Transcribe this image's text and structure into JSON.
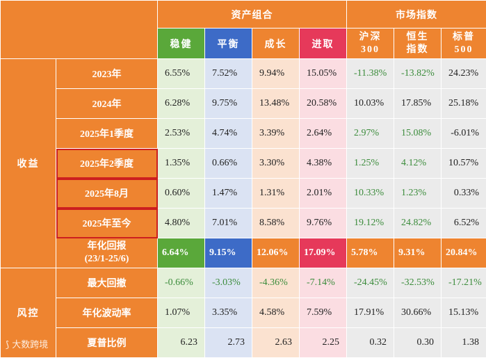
{
  "header": {
    "portfolio_group": "资产组合",
    "market_group": "市场指数",
    "columns": [
      "稳健",
      "平衡",
      "成长",
      "进取"
    ],
    "indices": [
      [
        "沪深",
        "300"
      ],
      [
        "恒生",
        "指数"
      ],
      [
        "标普",
        "500"
      ]
    ]
  },
  "sections": {
    "returns": "收益",
    "risk": "风控"
  },
  "rows": [
    {
      "label": "2023年",
      "values": [
        "6.55%",
        "7.52%",
        "9.94%",
        "15.05%",
        "-11.38%",
        "-13.82%",
        "24.23%"
      ]
    },
    {
      "label": "2024年",
      "values": [
        "6.28%",
        "9.75%",
        "13.48%",
        "20.58%",
        "10.03%",
        "17.85%",
        "25.18%"
      ]
    },
    {
      "label": "2025年1季度",
      "values": [
        "2.53%",
        "4.74%",
        "3.39%",
        "2.64%",
        "2.97%",
        "15.08%",
        "-6.01%"
      ]
    },
    {
      "label": "2025年2季度",
      "values": [
        "1.35%",
        "0.66%",
        "3.30%",
        "4.38%",
        "1.25%",
        "4.12%",
        "10.57%"
      ]
    },
    {
      "label": "2025年8月",
      "values": [
        "0.60%",
        "1.47%",
        "1.31%",
        "2.01%",
        "10.33%",
        "1.23%",
        "0.33%"
      ]
    },
    {
      "label": "2025年至今",
      "values": [
        "4.80%",
        "7.01%",
        "8.58%",
        "9.76%",
        "19.12%",
        "24.82%",
        "6.52%"
      ]
    },
    {
      "label": "年化回报",
      "label2": "(23/1-25/6)",
      "values": [
        "6.64%",
        "9.15%",
        "12.06%",
        "17.09%",
        "5.78%",
        "9.31%",
        "20.84%"
      ]
    },
    {
      "label": "最大回撤",
      "values": [
        "-0.66%",
        "-3.03%",
        "-4.36%",
        "-7.14%",
        "-24.45%",
        "-32.53%",
        "-17.21%"
      ]
    },
    {
      "label": "年化波动率",
      "values": [
        "1.07%",
        "3.35%",
        "4.58%",
        "7.59%",
        "17.91%",
        "30.66%",
        "15.13%"
      ]
    },
    {
      "label": "夏普比例",
      "values": [
        "6.23",
        "2.73",
        "2.63",
        "2.25",
        "0.32",
        "0.30",
        "1.38"
      ]
    }
  ],
  "watermark": "大数跨境",
  "colors": {
    "orange": "#ee8430",
    "green": "#5aa83a",
    "blue": "#3d6bc7",
    "red": "#e6395a",
    "highlight_border": "#cc1f1f"
  }
}
